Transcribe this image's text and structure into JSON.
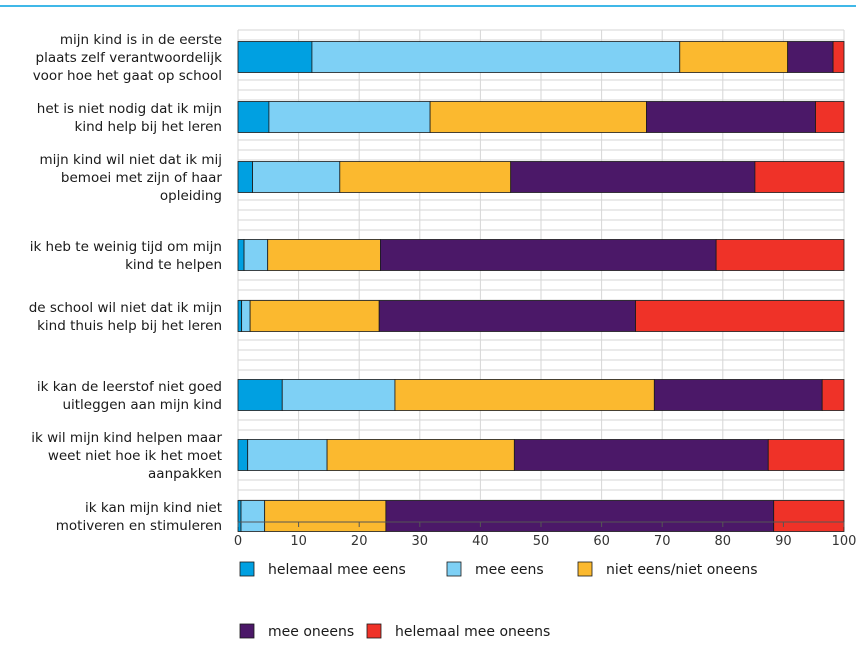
{
  "chart_data": {
    "type": "bar",
    "orientation": "horizontal",
    "stacked": true,
    "categories": [
      [
        "mijn kind is in de eerste",
        "plaats zelf verantwoordelijk",
        "voor hoe het gaat op school"
      ],
      [
        "het is niet nodig dat ik mijn",
        "kind help bij het leren"
      ],
      [
        "mijn kind wil niet dat ik mij",
        "bemoei met zijn of haar",
        "opleiding"
      ],
      [
        "ik heb te weinig tijd om mijn",
        "kind te helpen"
      ],
      [
        "de school wil niet dat ik mijn",
        "kind thuis help bij het leren"
      ],
      [
        "ik kan de leerstof niet goed",
        "uitleggen aan mijn kind"
      ],
      [
        "ik wil mijn kind helpen maar",
        "weet niet hoe ik het moet",
        "aanpakken"
      ],
      [
        "ik kan mijn kind niet",
        "motiveren en stimuleren"
      ]
    ],
    "series": [
      {
        "name": "helemaal mee eens",
        "color": "#00a0e1",
        "values": [
          12.2,
          5.1,
          2.4,
          1.0,
          0.6,
          7.3,
          1.6,
          0.5
        ]
      },
      {
        "name": "mee eens",
        "color": "#7ed0f5",
        "values": [
          60.7,
          26.6,
          14.4,
          3.9,
          1.4,
          18.6,
          13.1,
          3.9
        ]
      },
      {
        "name": "niet eens/niet oneens",
        "color": "#fbb92f",
        "values": [
          17.8,
          35.7,
          28.2,
          18.6,
          21.3,
          42.8,
          30.9,
          20.0
        ]
      },
      {
        "name": "mee oneens",
        "color": "#4b1868",
        "values": [
          7.5,
          27.9,
          40.3,
          55.4,
          42.3,
          27.7,
          41.9,
          64.0
        ]
      },
      {
        "name": "helemaal mee oneens",
        "color": "#ef3228",
        "values": [
          1.8,
          4.7,
          14.7,
          21.1,
          34.4,
          3.6,
          12.5,
          11.6
        ]
      }
    ],
    "xlim": [
      0,
      100
    ],
    "xticks": [
      "0",
      "10",
      "20",
      "30",
      "40",
      "50",
      "60",
      "70",
      "80",
      "90",
      "100"
    ],
    "grid": true,
    "legend_position": "bottom",
    "top_rule_color": "#00a0e1"
  }
}
